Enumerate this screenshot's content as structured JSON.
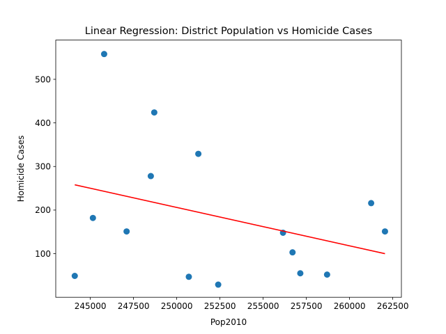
{
  "chart_data": {
    "type": "scatter",
    "title": "Linear Regression: District Population vs Homicide Cases",
    "xlabel": "Pop2010",
    "ylabel": "Homicide Cases",
    "xlim": [
      243000,
      263000
    ],
    "ylim": [
      0,
      590
    ],
    "grid": false,
    "x_ticks": [
      245000,
      247500,
      250000,
      252500,
      255000,
      257500,
      260000,
      262500
    ],
    "x_tick_labels": [
      "245000",
      "247500",
      "250000",
      "252500",
      "255000",
      "257500",
      "260000",
      "262500"
    ],
    "y_ticks": [
      100,
      200,
      300,
      400,
      500
    ],
    "y_tick_labels": [
      "100",
      "200",
      "300",
      "400",
      "500"
    ],
    "points": [
      {
        "x": 244100,
        "y": 49
      },
      {
        "x": 245150,
        "y": 182
      },
      {
        "x": 245800,
        "y": 558
      },
      {
        "x": 247100,
        "y": 151
      },
      {
        "x": 248500,
        "y": 278
      },
      {
        "x": 248700,
        "y": 424
      },
      {
        "x": 250700,
        "y": 47
      },
      {
        "x": 251250,
        "y": 329
      },
      {
        "x": 252400,
        "y": 29
      },
      {
        "x": 256150,
        "y": 148
      },
      {
        "x": 256700,
        "y": 103
      },
      {
        "x": 257150,
        "y": 55
      },
      {
        "x": 258700,
        "y": 52
      },
      {
        "x": 261250,
        "y": 216
      },
      {
        "x": 262050,
        "y": 151
      }
    ],
    "regression_line": {
      "x": [
        244100,
        262050
      ],
      "y": [
        258,
        100
      ]
    },
    "colors": {
      "points": "#1f77b4",
      "line": "#ff0000"
    }
  }
}
